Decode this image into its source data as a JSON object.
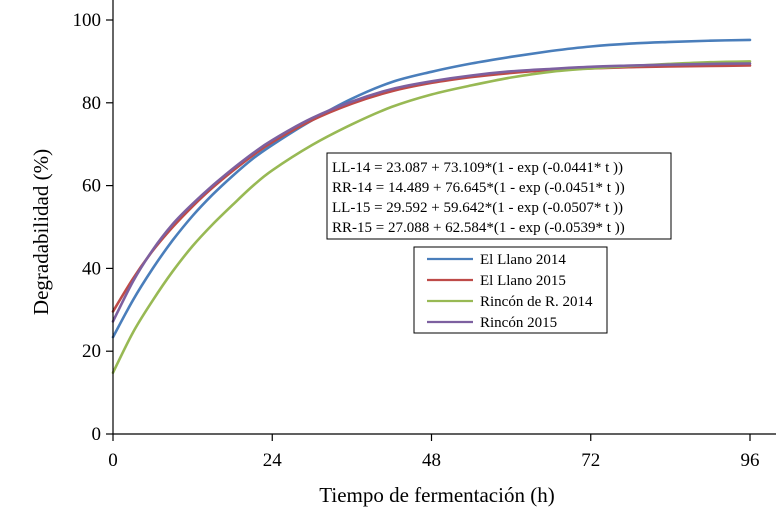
{
  "chart_data": {
    "type": "line",
    "title": "",
    "xlabel": "Tiempo de fermentación (h)",
    "ylabel": "Degradabilidad (%)",
    "xlim": [
      0,
      96
    ],
    "ylim": [
      0,
      100
    ],
    "xticks": [
      0,
      24,
      48,
      72,
      96
    ],
    "yticks": [
      0,
      20,
      40,
      60,
      80,
      100
    ],
    "grid": false,
    "legend_position": "center-right",
    "equations": [
      "LL-14 =  23.087 + 73.109*(1 - exp (-0.0441* t ))",
      "RR-14 = 14.489 + 76.645*(1 - exp (-0.0451* t ))",
      "LL-15 =  29.592 + 59.642*(1 - exp (-0.0507* t ))",
      "RR-15 = 27.088 + 62.584*(1 - exp (-0.0539* t ))"
    ],
    "series": [
      {
        "name": "El Llano 2014",
        "color": "#4a7ebb",
        "x": [
          0,
          3,
          6,
          9,
          12,
          15,
          18,
          21,
          24,
          30,
          36,
          42,
          48,
          54,
          60,
          66,
          72,
          78,
          84,
          90,
          96
        ],
        "y": [
          23.4,
          32.3,
          40.0,
          46.8,
          52.7,
          57.8,
          62.3,
          66.4,
          69.8,
          75.8,
          81.0,
          85.0,
          87.5,
          89.5,
          91.1,
          92.5,
          93.6,
          94.3,
          94.7,
          95.0,
          95.2
        ]
      },
      {
        "name": "El Llano 2015",
        "color": "#be4b48",
        "x": [
          0,
          3,
          6,
          9,
          12,
          15,
          18,
          21,
          24,
          30,
          36,
          42,
          48,
          54,
          60,
          66,
          72,
          78,
          84,
          90,
          96
        ],
        "y": [
          29.6,
          37.5,
          44.3,
          50.0,
          55.0,
          59.5,
          63.5,
          67.2,
          70.5,
          75.8,
          79.8,
          82.8,
          84.8,
          86.2,
          87.2,
          87.9,
          88.3,
          88.6,
          88.8,
          88.9,
          89.0
        ]
      },
      {
        "name": "Rincón de R. 2014",
        "color": "#98b954",
        "x": [
          0,
          3,
          6,
          9,
          12,
          15,
          18,
          21,
          24,
          30,
          36,
          42,
          48,
          54,
          60,
          66,
          72,
          78,
          84,
          90,
          96
        ],
        "y": [
          14.8,
          24.5,
          32.3,
          39.3,
          45.4,
          50.6,
          55.3,
          59.8,
          63.7,
          69.8,
          74.8,
          79.0,
          82.0,
          84.2,
          86.1,
          87.5,
          88.3,
          88.9,
          89.4,
          89.8,
          90.0
        ]
      },
      {
        "name": "Rincón 2015",
        "color": "#7d60a0",
        "x": [
          0,
          3,
          6,
          9,
          12,
          15,
          18,
          21,
          24,
          30,
          36,
          42,
          48,
          54,
          60,
          66,
          72,
          78,
          84,
          90,
          96
        ],
        "y": [
          27.2,
          36.8,
          44.5,
          50.7,
          55.6,
          60.0,
          64.0,
          67.7,
          71.0,
          76.3,
          80.3,
          83.3,
          85.2,
          86.6,
          87.6,
          88.2,
          88.7,
          89.0,
          89.2,
          89.4,
          89.5
        ]
      }
    ]
  }
}
